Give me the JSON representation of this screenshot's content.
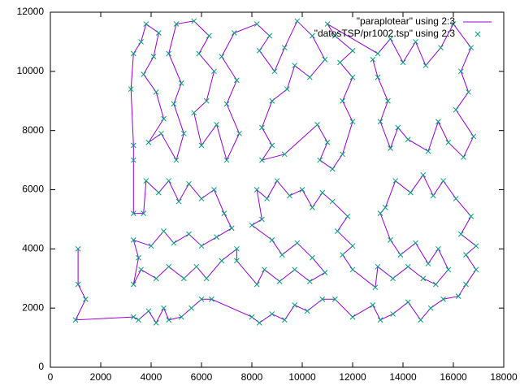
{
  "chart_data": {
    "type": "line",
    "x": [
      1100,
      1100,
      1400,
      1000,
      3300,
      3500,
      3900,
      4200,
      4500,
      4700,
      5200,
      5600,
      6000,
      6400,
      8000,
      8300,
      8800,
      9300,
      9700,
      10200,
      10800,
      11300,
      12000,
      12800,
      13100,
      13600,
      14200,
      14700,
      15100,
      15600,
      16200,
      16500,
      16900,
      16500,
      16900,
      16300,
      16700,
      16100,
      15600,
      15200,
      14800,
      14300,
      13700,
      13300,
      13100,
      13500,
      13900,
      14500,
      15000,
      15400,
      15800,
      15300,
      14800,
      14200,
      13600,
      13000,
      12900,
      12000,
      11600,
      12000,
      11400,
      11800,
      11200,
      10800,
      10400,
      10000,
      9500,
      9000,
      8600,
      8200,
      8400,
      8000,
      8800,
      9200,
      9800,
      10400,
      10900,
      10300,
      9700,
      9100,
      8500,
      8200,
      7400,
      7400,
      6800,
      6200,
      5800,
      5300,
      4700,
      4200,
      3600,
      3300,
      3500,
      3300,
      4000,
      4500,
      4900,
      5500,
      6000,
      6600,
      7200,
      6900,
      6500,
      6000,
      5500,
      5100,
      4700,
      4300,
      3800,
      3700,
      3300,
      3300,
      3300,
      3200,
      3300,
      3600,
      3800,
      4300,
      4100,
      3700,
      4200,
      4500,
      3900,
      4400,
      5000,
      5300,
      4900,
      5200,
      4700,
      5000,
      5700,
      6300,
      5900,
      6500,
      6200,
      5700,
      6000,
      6600,
      7000,
      7500,
      7000,
      7400,
      6800,
      7300,
      8200,
      8700,
      8300,
      8900,
      9300,
      9800,
      10400,
      10900,
      10300,
      9700,
      9400,
      8800,
      8400,
      8800,
      8400,
      9300,
      10600,
      11000,
      10700,
      11200,
      11600,
      12000,
      11600,
      12000,
      11500,
      12000,
      11300,
      11000,
      13000,
      13500,
      14000,
      14500,
      14900,
      15500,
      16000,
      16700,
      16300,
      16600,
      16100,
      16800,
      16400,
      15800,
      15400,
      15000,
      14200,
      13800,
      13500,
      13100,
      13400,
      13000,
      12800
    ],
    "series": [
      {
        "name": "\"paraplotear\" using 2:3",
        "color": "#9400d3",
        "mode": "lines",
        "values": [
          4000,
          2800,
          2300,
          1600,
          1700,
          1600,
          1900,
          1500,
          2000,
          1600,
          1700,
          2000,
          2300,
          2300,
          1700,
          1500,
          1800,
          1600,
          2100,
          1900,
          2300,
          2300,
          1700,
          2100,
          1600,
          1800,
          2200,
          1600,
          2000,
          2300,
          2400,
          2800,
          3300,
          3800,
          4100,
          4500,
          5100,
          5700,
          6300,
          5800,
          6500,
          5900,
          6300,
          5400,
          5200,
          4300,
          3800,
          4200,
          3500,
          4000,
          3300,
          2800,
          3000,
          3400,
          3000,
          3400,
          2700,
          3300,
          3800,
          4100,
          4600,
          5100,
          5600,
          5900,
          5400,
          6000,
          5800,
          6300,
          5700,
          6000,
          5000,
          4800,
          4300,
          3800,
          4200,
          3700,
          3200,
          2900,
          3300,
          2900,
          3300,
          2800,
          3600,
          4000,
          3600,
          3000,
          3400,
          3000,
          3400,
          3000,
          3300,
          2800,
          3700,
          4300,
          4100,
          4600,
          4200,
          4500,
          4100,
          4400,
          4700,
          5200,
          6000,
          5700,
          6200,
          5600,
          6300,
          5900,
          6300,
          5200,
          5200,
          7000,
          7500,
          9400,
          10600,
          11000,
          11600,
          11300,
          10500,
          9900,
          9300,
          8400,
          7600,
          7900,
          7000,
          7900,
          8900,
          9600,
          10600,
          11600,
          11700,
          11200,
          10600,
          10000,
          9000,
          8600,
          7500,
          8200,
          7000,
          7900,
          8900,
          9700,
          10500,
          11300,
          11600,
          11200,
          10700,
          10000,
          10800,
          11700,
          11200,
          10400,
          9800,
          10200,
          9400,
          9000,
          8100,
          7500,
          7000,
          7200,
          8200,
          7600,
          7000,
          6700,
          7200,
          8300,
          9000,
          9800,
          10300,
          10700,
          11200,
          11600,
          10600,
          11100,
          10300,
          11000,
          10200,
          10800,
          11600,
          10800,
          10000,
          9300,
          8700,
          7800,
          7100,
          7600,
          8300,
          7300,
          7700,
          8100,
          7400,
          8300,
          9000,
          9800,
          10400
        ]
      },
      {
        "name": "\"datosTSP/pr1002.tsp\" using 2:3",
        "color": "#009e73",
        "mode": "points",
        "values": [
          4000,
          2800,
          2300,
          1600,
          1700,
          1600,
          1900,
          1500,
          2000,
          1600,
          1700,
          2000,
          2300,
          2300,
          1700,
          1500,
          1800,
          1600,
          2100,
          1900,
          2300,
          2300,
          1700,
          2100,
          1600,
          1800,
          2200,
          1600,
          2000,
          2300,
          2400,
          2800,
          3300,
          3800,
          4100,
          4500,
          5100,
          5700,
          6300,
          5800,
          6500,
          5900,
          6300,
          5400,
          5200,
          4300,
          3800,
          4200,
          3500,
          4000,
          3300,
          2800,
          3000,
          3400,
          3000,
          3400,
          2700,
          3300,
          3800,
          4100,
          4600,
          5100,
          5600,
          5900,
          5400,
          6000,
          5800,
          6300,
          5700,
          6000,
          5000,
          4800,
          4300,
          3800,
          4200,
          3700,
          3200,
          2900,
          3300,
          2900,
          3300,
          2800,
          3600,
          4000,
          3600,
          3000,
          3400,
          3000,
          3400,
          3000,
          3300,
          2800,
          3700,
          4300,
          4100,
          4600,
          4200,
          4500,
          4100,
          4400,
          4700,
          5200,
          6000,
          5700,
          6200,
          5600,
          6300,
          5900,
          6300,
          5200,
          5200,
          7000,
          7500,
          9400,
          10600,
          11000,
          11600,
          11300,
          10500,
          9900,
          9300,
          8400,
          7600,
          7900,
          7000,
          7900,
          8900,
          9600,
          10600,
          11600,
          11700,
          11200,
          10600,
          10000,
          9000,
          8600,
          7500,
          8200,
          7000,
          7900,
          8900,
          9700,
          10500,
          11300,
          11600,
          11200,
          10700,
          10000,
          10800,
          11700,
          11200,
          10400,
          9800,
          10200,
          9400,
          9000,
          8100,
          7500,
          7000,
          7200,
          8200,
          7600,
          7000,
          6700,
          7200,
          8300,
          9000,
          9800,
          10300,
          10700,
          11200,
          11600,
          10600,
          11100,
          10300,
          11000,
          10200,
          10800,
          11600,
          10800,
          10000,
          9300,
          8700,
          7800,
          7100,
          7600,
          8300,
          7300,
          7700,
          8100,
          7400,
          8300,
          9000,
          9800,
          10400
        ]
      }
    ],
    "xlim": [
      0,
      18000
    ],
    "xticks": [
      0,
      2000,
      4000,
      6000,
      8000,
      10000,
      12000,
      14000,
      16000,
      18000
    ],
    "ylim": [
      0,
      12000
    ],
    "yticks": [
      0,
      2000,
      4000,
      6000,
      8000,
      10000,
      12000
    ],
    "legend": "top-right",
    "grid": false
  }
}
